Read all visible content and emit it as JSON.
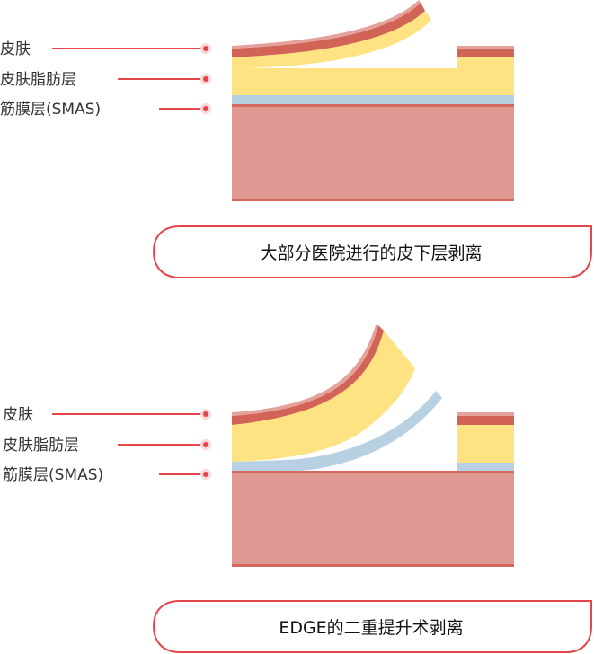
{
  "colors": {
    "skin_light": "#e5a19c",
    "skin": "#d26457",
    "fat": "#ffe382",
    "smas": "#b7d1e3",
    "muscle": "#e09893",
    "muscle_line": "#d5685f",
    "accent": "#e5454b"
  },
  "diagrams": [
    {
      "labels": [
        "皮肤",
        "皮肤脂肪层",
        "筋膜层(SMAS)"
      ],
      "caption": "大部分医院进行的皮下层剥离"
    },
    {
      "labels": [
        "皮肤",
        "皮肤脂肪层",
        "筋膜层(SMAS)"
      ],
      "caption": "EDGE的二重提升术剥离"
    }
  ]
}
